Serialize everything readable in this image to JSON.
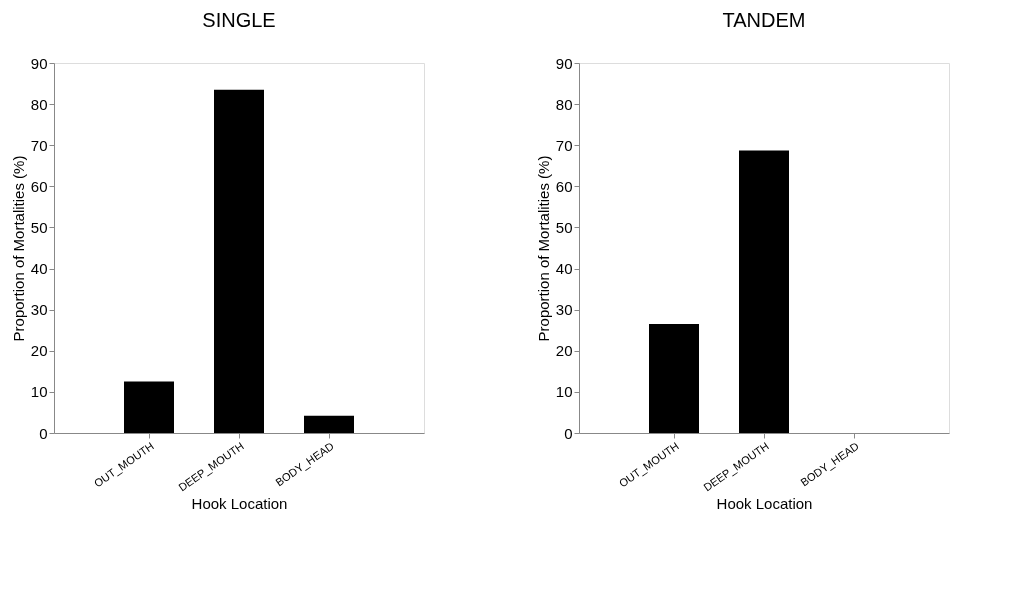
{
  "chart_data": [
    {
      "type": "bar",
      "title": "SINGLE",
      "xlabel": "Hook Location",
      "ylabel": "Proportion of Mortalities (%)",
      "categories": [
        "OUT_MOUTH",
        "DEEP_MOUTH",
        "BODY_HEAD"
      ],
      "values": [
        12.5,
        83.5,
        4.2
      ],
      "color": "#000000",
      "ylim": [
        0,
        90
      ],
      "yticks": [
        0,
        10,
        20,
        30,
        40,
        50,
        60,
        70,
        80,
        90
      ],
      "grid": false
    },
    {
      "type": "bar",
      "title": "TANDEM",
      "xlabel": "Hook Location",
      "ylabel": "Proportion of Mortalities (%)",
      "categories": [
        "OUT_MOUTH",
        "DEEP_MOUTH",
        "BODY_HEAD"
      ],
      "values": [
        26.5,
        68.7,
        0
      ],
      "color": "#000000",
      "ylim": [
        0,
        90
      ],
      "yticks": [
        0,
        10,
        20,
        30,
        40,
        50,
        60,
        70,
        80,
        90
      ],
      "grid": false
    }
  ]
}
